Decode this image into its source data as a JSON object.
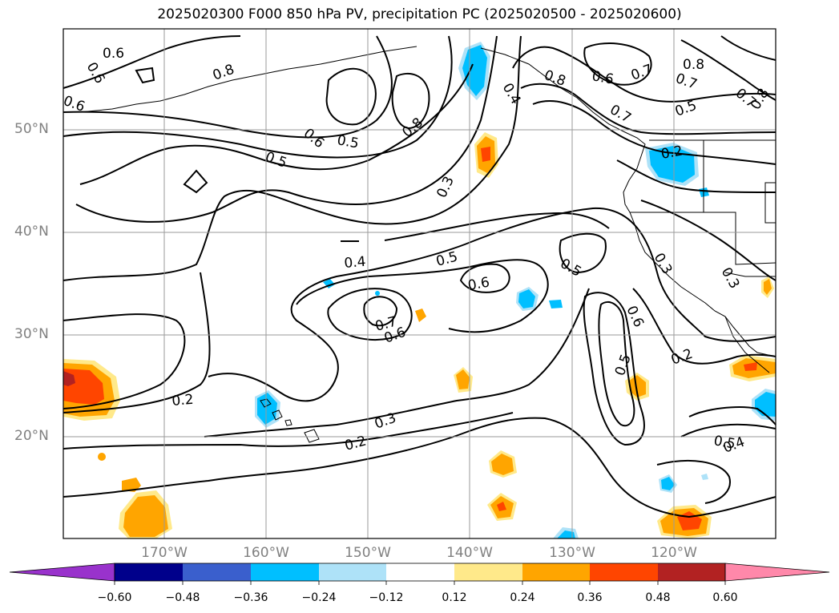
{
  "title": "2025020300 F000 850 hPa PV, precipitation PC (2025020500 - 2025020600)",
  "map": {
    "lat_labels": [
      "50°N",
      "40°N",
      "30°N",
      "20°N"
    ],
    "lon_labels": [
      "170°W",
      "160°W",
      "150°W",
      "140°W",
      "130°W",
      "120°W"
    ],
    "contour_labels": [
      "0.6",
      "0.6",
      "0.6",
      "0.8",
      "0.6",
      "0.5",
      "0.5",
      "0.8",
      "0.3",
      "0.4",
      "0.6",
      "0.8",
      "0.7",
      "0.7",
      "0.7",
      "0.5",
      "0.2",
      "0.4",
      "0.5",
      "0.6",
      "0.5",
      "0.3",
      "0.3",
      "0.7",
      "0.6",
      "0.6",
      "0.5",
      "0.2",
      "0.2",
      "0.3",
      "0.2",
      "0.5",
      "0.4",
      "0.8",
      "0.7",
      "0.8"
    ],
    "colors": {
      "coast": "#000000",
      "grid": "#9a9a9a"
    }
  },
  "colorbar": {
    "tick_labels": [
      "−0.60",
      "−0.48",
      "−0.36",
      "−0.24",
      "−0.12",
      "0.12",
      "0.24",
      "0.36",
      "0.48",
      "0.60"
    ],
    "colors": [
      "#9932cc",
      "#00008b",
      "#3a5fcd",
      "#00bfff",
      "#aee2f8",
      "#ffffff",
      "#ffe98a",
      "#ffa500",
      "#ff4500",
      "#b22222",
      "#ff88aa"
    ]
  }
}
